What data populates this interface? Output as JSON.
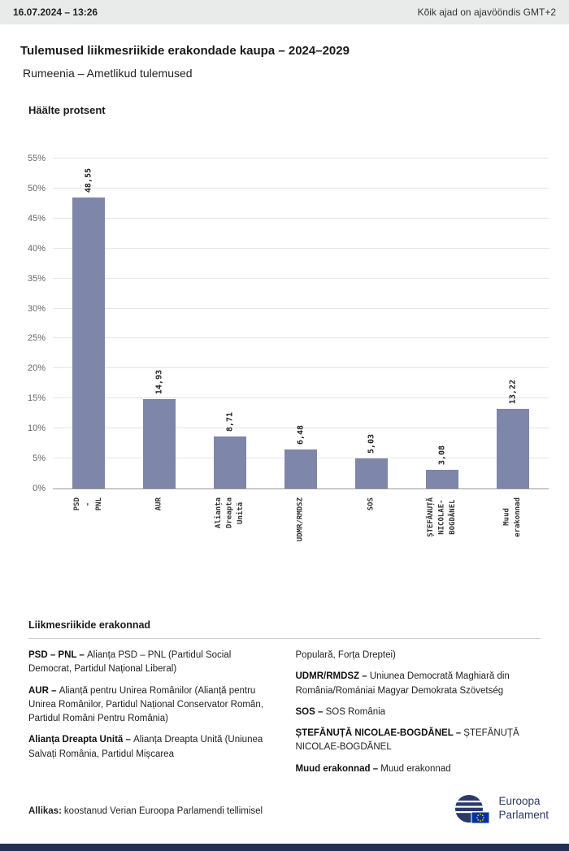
{
  "header": {
    "timestamp": "16.07.2024 – 13:26",
    "timezone_note": "Kõik ajad on ajavööndis GMT+2"
  },
  "titles": {
    "main": "Tulemused liikmesriikide erakondade kaupa – 2024–2029",
    "subtitle": "Rumeenia – Ametlikud tulemused"
  },
  "chart_data": {
    "type": "bar",
    "title": "Häälte protsent",
    "categories": [
      "PSD - PNL",
      "AUR",
      "Alianța Dreapta\nUnită",
      "UDMR/RMDSZ",
      "SOS",
      "ȘTEFĂNUȚĂ NICOLAE-\nBOGDĂNEL",
      "Muud erakonnad"
    ],
    "values": [
      48.55,
      14.93,
      8.71,
      6.48,
      5.03,
      3.08,
      13.22
    ],
    "value_labels": [
      "48,55",
      "14,93",
      "8,71",
      "6,48",
      "5,03",
      "3,08",
      "13,22"
    ],
    "ylabel": "Häälte protsent",
    "xlabel": "",
    "ylim": [
      0,
      55
    ],
    "ytick_step": 5,
    "ytick_suffix": "%",
    "grid": true,
    "legend_position": "none",
    "bar_color": "#7e87a9"
  },
  "legend": {
    "heading": "Liikmesriikide erakonnad",
    "columns": [
      [
        {
          "term": "PSD – PNL –",
          "desc": "Alianța PSD – PNL (Partidul Social Democrat, Partidul Național Liberal)"
        },
        {
          "term": "AUR –",
          "desc": "Alianță pentru Unirea Românilor (Alianță pentru Unirea Românilor, Partidul Național Conservator Român, Partidul Români Pentru România)"
        },
        {
          "term": "Alianța Dreapta Unită –",
          "desc": "Alianța Dreapta Unită (Uniunea Salvați România, Partidul Mișcarea"
        }
      ],
      [
        {
          "term": "",
          "desc": "Populară, Forța Dreptei)"
        },
        {
          "term": "UDMR/RMDSZ –",
          "desc": "Uniunea Democrată Maghiară din România/Romániai Magyar Demokrata Szövetség"
        },
        {
          "term": "SOS –",
          "desc": "SOS România"
        },
        {
          "term": "ȘTEFĂNUȚĂ NICOLAE-BOGDĂNEL –",
          "desc": "ȘTEFĂNUȚĂ NICOLAE-BOGDĂNEL"
        },
        {
          "term": "Muud erakonnad –",
          "desc": "Muud erakonnad"
        }
      ]
    ]
  },
  "footer": {
    "source_label": "Allikas:",
    "source_text": "koostanud Verian Euroopa Parlamendi tellimisel",
    "logo_line1": "Euroopa",
    "logo_line2": "Parlament"
  }
}
